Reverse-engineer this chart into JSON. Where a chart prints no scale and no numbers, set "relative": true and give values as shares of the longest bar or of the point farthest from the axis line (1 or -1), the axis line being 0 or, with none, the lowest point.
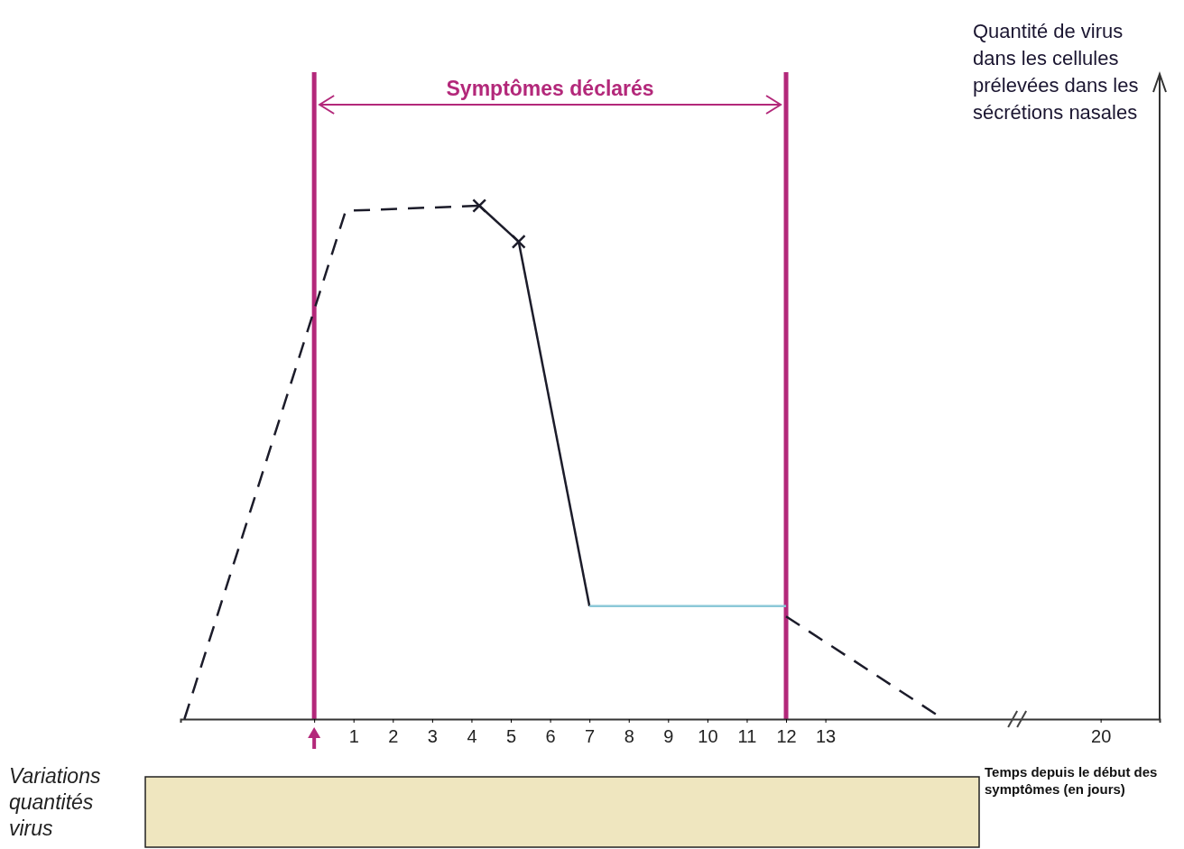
{
  "chart_data": {
    "type": "line",
    "relative": true,
    "xlabel": "Temps depuis le début des symptômes (en jours)",
    "ylabel": "Quantité de virus dans les cellules prélevées dans les sécrétions nasales",
    "xlim": [
      -3.4,
      21.5
    ],
    "xticks": [
      {
        "value": 0,
        "label": null
      },
      1,
      2,
      3,
      4,
      5,
      6,
      7,
      8,
      9,
      10,
      11,
      12,
      13,
      20
    ],
    "series": [
      {
        "color": "#1c1c2a",
        "line_style": "dashed",
        "marker": "none",
        "x": [
          -3.3,
          0.8,
          4.2
        ],
        "values": [
          0,
          0.99,
          1
        ]
      },
      {
        "color": "#1c1c2a",
        "line_style": "solid",
        "marker": "cross",
        "x": [
          4.2,
          5.2
        ],
        "values": [
          1,
          0.93
        ]
      },
      {
        "color": "#1c1c2a",
        "line_style": "solid",
        "marker": "none",
        "x": [
          5.2,
          7
        ],
        "values": [
          0.93,
          0.22
        ]
      },
      {
        "color": "#8cc8d8",
        "line_style": "solid",
        "marker": "none",
        "x": [
          7,
          12
        ],
        "values": [
          0.22,
          0.22
        ]
      },
      {
        "color": "#1c1c2a",
        "line_style": "dashed",
        "marker": "none",
        "x": [
          12,
          16
        ],
        "values": [
          0.2,
          0
        ]
      }
    ],
    "ref_lines": [
      {
        "axis": "x",
        "value": 0,
        "color": "#b3287a"
      },
      {
        "axis": "x",
        "value": 12,
        "color": "#b3287a"
      }
    ],
    "annotations": [
      "Symptômes déclarés",
      "Variations quantités virus"
    ],
    "grid": false,
    "legend": false
  }
}
